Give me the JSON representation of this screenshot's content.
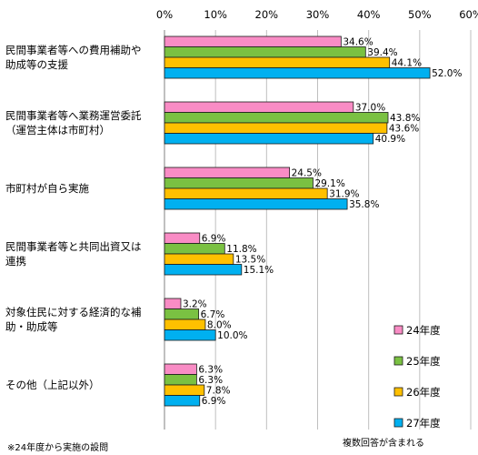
{
  "chart_data": {
    "type": "bar",
    "orientation": "horizontal",
    "categories": [
      [
        "民間事業者等への費用補助や",
        "助成等の支援"
      ],
      [
        "民間事業者等へ業務運営委託",
        "（運営主体は市町村）"
      ],
      [
        "市町村が自ら実施"
      ],
      [
        "民間事業者等と共同出資又は",
        "連携"
      ],
      [
        "対象住民に対する経済的な補",
        "助・助成等"
      ],
      [
        "その他（上記以外）"
      ]
    ],
    "series": [
      {
        "name": "24年度",
        "color": "#f98cc5",
        "values": [
          34.6,
          37.0,
          24.5,
          6.9,
          3.2,
          6.3
        ],
        "labels": [
          "34.6%",
          "37.0%",
          "24.5%",
          "6.9%",
          "3.2%",
          "6.3%"
        ]
      },
      {
        "name": "25年度",
        "color": "#7ac142",
        "values": [
          39.4,
          43.8,
          29.1,
          11.8,
          6.7,
          6.3
        ],
        "labels": [
          "39.4%",
          "43.8%",
          "29.1%",
          "11.8%",
          "6.7%",
          "6.3%"
        ]
      },
      {
        "name": "26年度",
        "color": "#ffc000",
        "values": [
          44.1,
          43.6,
          31.9,
          13.5,
          8.0,
          7.8
        ],
        "labels": [
          "44.1%",
          "43.6%",
          "31.9%",
          "13.5%",
          "8.0%",
          "7.8%"
        ]
      },
      {
        "name": "27年度",
        "color": "#00b0f0",
        "values": [
          52.0,
          40.9,
          35.8,
          15.1,
          10.0,
          6.9
        ],
        "labels": [
          "52.0%",
          "40.9%",
          "35.8%",
          "15.1%",
          "10.0%",
          "6.9%"
        ]
      }
    ],
    "xlim": [
      0,
      60
    ],
    "ticks": [
      "0%",
      "10%",
      "20%",
      "30%",
      "40%",
      "50%",
      "60%"
    ],
    "grid": true,
    "legend_position": "bottom-right"
  },
  "notes": {
    "left": "※24年度から実施の設問",
    "right": "複数回答が含まれる"
  }
}
